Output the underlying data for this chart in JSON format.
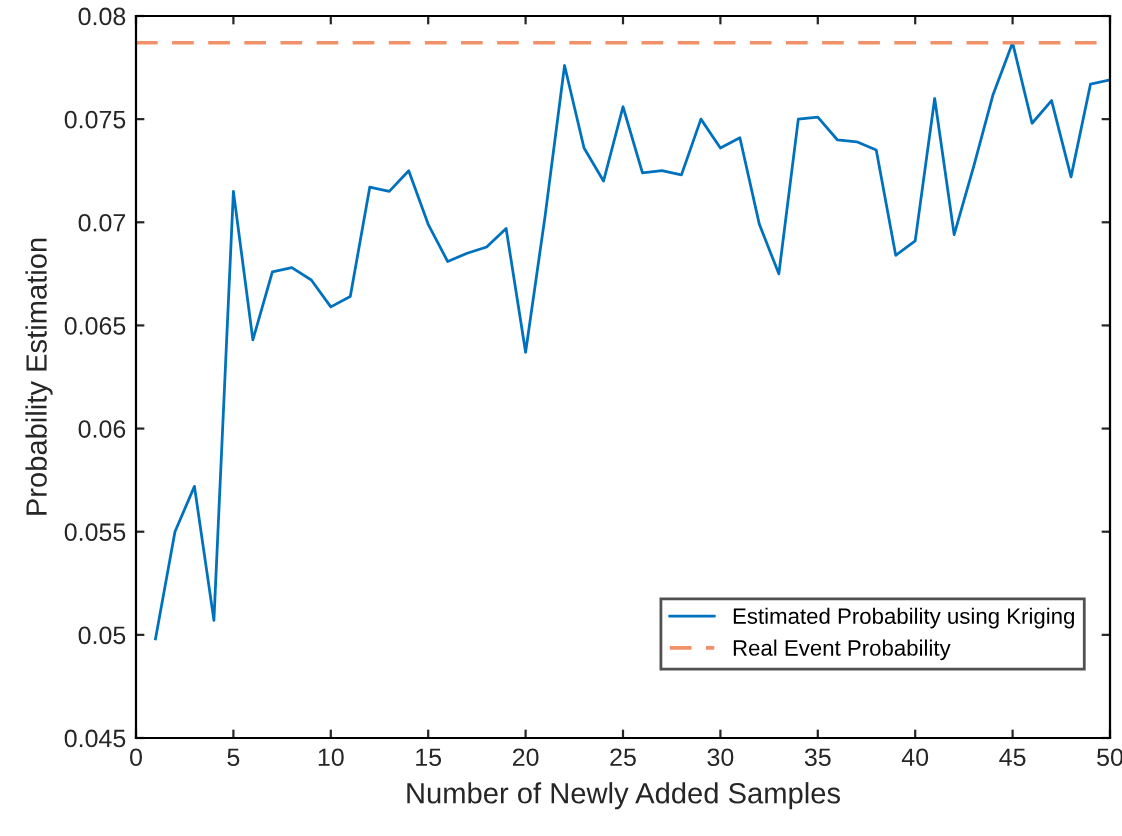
{
  "chart_data": {
    "type": "line",
    "xlabel": "Number of Newly Added Samples",
    "ylabel": "Probability Estimation",
    "x": [
      1,
      2,
      3,
      4,
      5,
      6,
      7,
      8,
      9,
      10,
      11,
      12,
      13,
      14,
      15,
      16,
      17,
      18,
      19,
      20,
      21,
      22,
      23,
      24,
      25,
      26,
      27,
      28,
      29,
      30,
      31,
      32,
      33,
      34,
      35,
      36,
      37,
      38,
      39,
      40,
      41,
      42,
      43,
      44,
      45,
      46,
      47,
      48,
      49,
      50
    ],
    "series": [
      {
        "name": "Estimated Probability using Kriging",
        "color": "#0072bd",
        "values": [
          0.0498,
          0.055,
          0.0572,
          0.0507,
          0.0715,
          0.0643,
          0.0676,
          0.0678,
          0.0672,
          0.0659,
          0.0664,
          0.0717,
          0.0715,
          0.0725,
          0.0699,
          0.0681,
          0.0685,
          0.0688,
          0.0697,
          0.0637,
          0.0703,
          0.0776,
          0.0736,
          0.072,
          0.0756,
          0.0724,
          0.0725,
          0.0723,
          0.075,
          0.0736,
          0.0741,
          0.0699,
          0.0675,
          0.075,
          0.0751,
          0.074,
          0.0739,
          0.0735,
          0.0684,
          0.0691,
          0.076,
          0.0694,
          0.0727,
          0.0762,
          0.0787,
          0.0748,
          0.0759,
          0.0722,
          0.0767,
          0.0769
        ]
      }
    ],
    "ref_lines": [
      {
        "axis": "y",
        "value": 0.0787,
        "label": "Real Event Probability",
        "color": "#f0916a",
        "line_style": "dashed"
      }
    ],
    "xlim": [
      0,
      50
    ],
    "xticks": [
      0,
      5,
      10,
      15,
      20,
      25,
      30,
      35,
      40,
      45,
      50
    ],
    "ylim": [
      0.045,
      0.08
    ],
    "yticks": [
      0.045,
      0.05,
      0.055,
      0.06,
      0.065,
      0.07,
      0.075,
      0.08
    ],
    "legend": "lower right",
    "grid": false,
    "marker": "none",
    "line_style": "solid"
  }
}
